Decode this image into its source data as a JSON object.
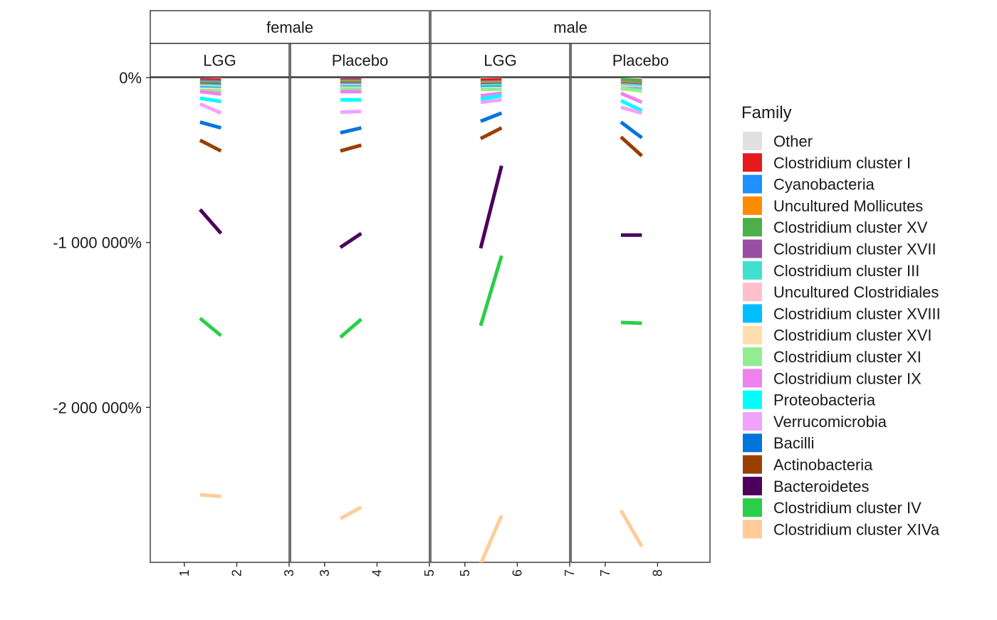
{
  "chart_data": {
    "type": "line",
    "facet_rows": [
      "female",
      "male"
    ],
    "facet_cols": [
      "LGG",
      "Placebo"
    ],
    "y_ticks": [
      {
        "value": 0,
        "label": "0%"
      },
      {
        "value": -1000000,
        "label": "-1 000 000%"
      },
      {
        "value": -2000000,
        "label": "-2 000 000%"
      }
    ],
    "ylim": [
      -2940000,
      0
    ],
    "panels": [
      {
        "sex": "female",
        "group": "LGG",
        "xlim": [
          0.35,
          3.0
        ],
        "x_ticks": [
          {
            "value": 1,
            "label": "1"
          },
          {
            "value": 2,
            "label": "2"
          },
          {
            "value": 3,
            "label": "3"
          }
        ]
      },
      {
        "sex": "female",
        "group": "Placebo",
        "xlim": [
          2.35,
          5.0
        ],
        "x_ticks": [
          {
            "value": 3,
            "label": "3"
          },
          {
            "value": 4,
            "label": "4"
          },
          {
            "value": 5,
            "label": "5"
          }
        ]
      },
      {
        "sex": "male",
        "group": "LGG",
        "xlim": [
          4.35,
          7.0
        ],
        "x_ticks": [
          {
            "value": 5,
            "label": "5"
          },
          {
            "value": 6,
            "label": "6"
          },
          {
            "value": 7,
            "label": "7"
          }
        ]
      },
      {
        "sex": "male",
        "group": "Placebo",
        "xlim": [
          6.35,
          9.0
        ],
        "x_ticks": [
          {
            "value": 7,
            "label": "7"
          },
          {
            "value": 8,
            "label": "8"
          }
        ]
      }
    ],
    "legend": {
      "title": "Family",
      "position": "right",
      "items": [
        {
          "name": "Other",
          "color": "#e0e0e0"
        },
        {
          "name": "Clostridium cluster I",
          "color": "#e41a1c"
        },
        {
          "name": "Cyanobacteria",
          "color": "#1e90ff"
        },
        {
          "name": "Uncultured Mollicutes",
          "color": "#ff8c00"
        },
        {
          "name": "Clostridium cluster XV",
          "color": "#4daf4a"
        },
        {
          "name": "Clostridium cluster XVII",
          "color": "#984ea3"
        },
        {
          "name": "Clostridium cluster III",
          "color": "#40e0d0"
        },
        {
          "name": "Uncultured Clostridiales",
          "color": "#ffc0cb"
        },
        {
          "name": "Clostridium cluster XVIII",
          "color": "#00bfff"
        },
        {
          "name": "Clostridium cluster XVI",
          "color": "#ffdead"
        },
        {
          "name": "Clostridium cluster XI",
          "color": "#90ee90"
        },
        {
          "name": "Clostridium cluster IX",
          "color": "#ee82ee"
        },
        {
          "name": "Proteobacteria",
          "color": "#00ffff"
        },
        {
          "name": "Verrucomicrobia",
          "color": "#f0a3ff"
        },
        {
          "name": "Bacilli",
          "color": "#0075dc"
        },
        {
          "name": "Actinobacteria",
          "color": "#993f00"
        },
        {
          "name": "Bacteroidetes",
          "color": "#4c005c"
        },
        {
          "name": "Clostridium cluster IV",
          "color": "#2bce48"
        },
        {
          "name": "Clostridium cluster XIVa",
          "color": "#ffcc99"
        }
      ]
    },
    "series": [
      {
        "family": "Other",
        "segments": [
          [
            1.3,
            -5000,
            1.7,
            -8000
          ],
          [
            3.3,
            -5000,
            3.7,
            -5000
          ],
          [
            5.3,
            -5000,
            5.7,
            -5000
          ],
          [
            7.3,
            -5000,
            7.7,
            -8000
          ]
        ]
      },
      {
        "family": "Clostridium cluster I",
        "segments": [
          [
            1.3,
            -12000,
            1.7,
            -14000
          ],
          [
            3.3,
            -12000,
            3.7,
            -12000
          ],
          [
            5.3,
            -15000,
            5.7,
            -13000
          ],
          [
            7.3,
            -12000,
            7.7,
            -18000
          ]
        ]
      },
      {
        "family": "Cyanobacteria",
        "segments": [
          [
            1.3,
            -22000,
            1.7,
            -25000
          ],
          [
            3.3,
            -20000,
            3.7,
            -20000
          ],
          [
            5.3,
            -28000,
            5.7,
            -26000
          ],
          [
            7.3,
            -22000,
            7.7,
            -30000
          ]
        ]
      },
      {
        "family": "Uncultured Mollicutes",
        "segments": [
          [
            1.3,
            -30000,
            1.7,
            -33000
          ],
          [
            3.3,
            -26000,
            3.7,
            -26000
          ],
          [
            5.3,
            -32000,
            5.7,
            -30000
          ],
          [
            7.3,
            -28000,
            7.7,
            -36000
          ]
        ]
      },
      {
        "family": "Clostridium cluster XV",
        "segments": [
          [
            1.3,
            -35000,
            1.7,
            -38000
          ],
          [
            3.3,
            -32000,
            3.7,
            -32000
          ],
          [
            5.3,
            -40000,
            5.7,
            -38000
          ],
          [
            7.3,
            -10000,
            7.7,
            -20000
          ]
        ]
      },
      {
        "family": "Clostridium cluster XVII",
        "segments": [
          [
            1.3,
            -42000,
            1.7,
            -45000
          ],
          [
            3.3,
            -38000,
            3.7,
            -38000
          ],
          [
            5.3,
            -45000,
            5.7,
            -43000
          ],
          [
            7.3,
            -38000,
            7.7,
            -45000
          ]
        ]
      },
      {
        "family": "Clostridium cluster III",
        "segments": [
          [
            1.3,
            -48000,
            1.7,
            -52000
          ],
          [
            3.3,
            -45000,
            3.7,
            -45000
          ],
          [
            5.3,
            -50000,
            5.7,
            -48000
          ],
          [
            7.3,
            -45000,
            7.7,
            -52000
          ]
        ]
      },
      {
        "family": "Uncultured Clostridiales",
        "segments": [
          [
            1.3,
            -55000,
            1.7,
            -60000
          ],
          [
            3.3,
            -52000,
            3.7,
            -52000
          ],
          [
            5.3,
            -55000,
            5.7,
            -52000
          ],
          [
            7.3,
            -55000,
            7.7,
            -62000
          ]
        ]
      },
      {
        "family": "Clostridium cluster XVIII",
        "segments": [
          [
            1.3,
            -62000,
            1.7,
            -67000
          ],
          [
            3.3,
            -58000,
            3.7,
            -58000
          ],
          [
            5.3,
            -58000,
            5.7,
            -55000
          ],
          [
            7.3,
            -65000,
            7.7,
            -72000
          ]
        ]
      },
      {
        "family": "Clostridium cluster XVI",
        "segments": [
          [
            1.3,
            -70000,
            1.7,
            -74000
          ],
          [
            3.3,
            -65000,
            3.7,
            -65000
          ],
          [
            5.3,
            -68000,
            5.7,
            -66000
          ],
          [
            7.3,
            -70000,
            7.7,
            -78000
          ]
        ]
      },
      {
        "family": "Clostridium cluster XI",
        "segments": [
          [
            1.3,
            -78000,
            1.7,
            -82000
          ],
          [
            3.3,
            -70000,
            3.7,
            -70000
          ],
          [
            5.3,
            -72000,
            5.7,
            -70000
          ],
          [
            7.3,
            -62000,
            7.7,
            -82000
          ]
        ]
      },
      {
        "family": "Clostridium cluster IX",
        "segments": [
          [
            1.3,
            -85000,
            1.7,
            -100000
          ],
          [
            3.3,
            -85000,
            3.7,
            -85000
          ],
          [
            5.3,
            -110000,
            5.7,
            -95000
          ],
          [
            7.3,
            -95000,
            7.7,
            -150000
          ]
        ]
      },
      {
        "family": "Proteobacteria",
        "segments": [
          [
            1.3,
            -125000,
            1.7,
            -145000
          ],
          [
            3.3,
            -135000,
            3.7,
            -135000
          ],
          [
            5.3,
            -130000,
            5.7,
            -110000
          ],
          [
            7.3,
            -140000,
            7.7,
            -200000
          ]
        ]
      },
      {
        "family": "Verrucomicrobia",
        "segments": [
          [
            1.3,
            -160000,
            1.7,
            -215000
          ],
          [
            3.3,
            -210000,
            3.7,
            -205000
          ],
          [
            5.3,
            -150000,
            5.7,
            -135000
          ],
          [
            7.3,
            -180000,
            7.7,
            -215000
          ]
        ]
      },
      {
        "family": "Bacilli",
        "segments": [
          [
            1.3,
            -270000,
            1.7,
            -305000
          ],
          [
            3.3,
            -335000,
            3.7,
            -305000
          ],
          [
            5.3,
            -265000,
            5.7,
            -215000
          ],
          [
            7.3,
            -270000,
            7.7,
            -365000
          ]
        ]
      },
      {
        "family": "Actinobacteria",
        "segments": [
          [
            1.3,
            -380000,
            1.7,
            -445000
          ],
          [
            3.3,
            -445000,
            3.7,
            -410000
          ],
          [
            5.3,
            -370000,
            5.7,
            -305000
          ],
          [
            7.3,
            -360000,
            7.7,
            -475000
          ]
        ]
      },
      {
        "family": "Bacteroidetes",
        "segments": [
          [
            1.3,
            -800000,
            1.7,
            -945000
          ],
          [
            3.3,
            -1030000,
            3.7,
            -945000
          ],
          [
            5.3,
            -1035000,
            5.7,
            -535000
          ],
          [
            7.3,
            -955000,
            7.7,
            -955000
          ]
        ]
      },
      {
        "family": "Clostridium cluster IV",
        "segments": [
          [
            1.3,
            -1460000,
            1.7,
            -1565000
          ],
          [
            3.3,
            -1575000,
            3.7,
            -1465000
          ],
          [
            5.3,
            -1505000,
            5.7,
            -1080000
          ],
          [
            7.3,
            -1485000,
            7.7,
            -1490000
          ]
        ]
      },
      {
        "family": "Clostridium cluster XIVa",
        "segments": [
          [
            1.3,
            -2530000,
            1.7,
            -2540000
          ],
          [
            3.3,
            -2675000,
            3.7,
            -2605000
          ],
          [
            5.3,
            -2950000,
            5.7,
            -2655000
          ],
          [
            7.3,
            -2625000,
            7.7,
            -2845000
          ]
        ]
      }
    ]
  }
}
